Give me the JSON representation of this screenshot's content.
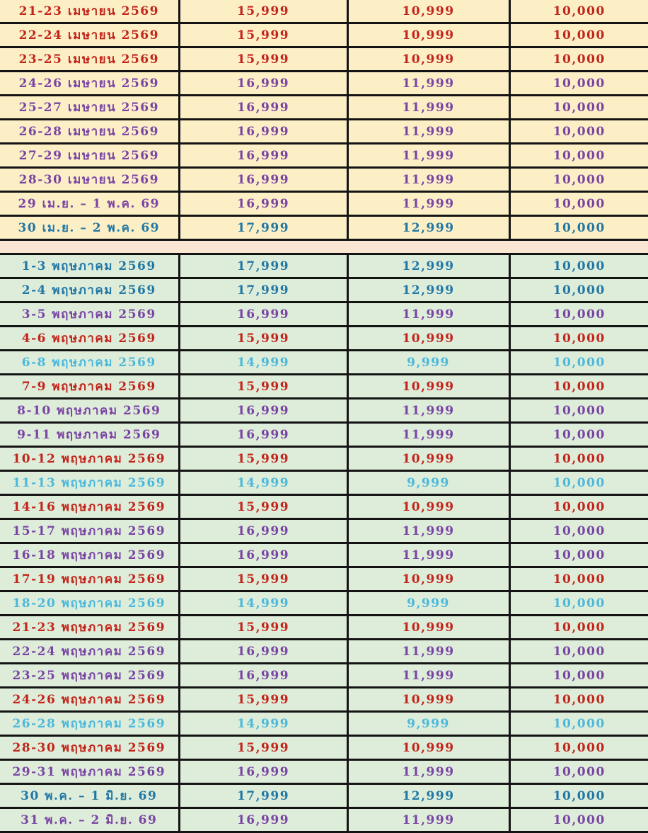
{
  "colors": {
    "red": "#C3241B",
    "purple": "#7A44A4",
    "teal": "#2177A5",
    "cyan": "#4BB8DC",
    "april_bg": "#FCEFC6",
    "may_bg": "#DEEDDA",
    "gap_bg": "#FAE7D3",
    "border": "#141414"
  },
  "chart_data": {
    "type": "table",
    "columns": [
      "date_range",
      "price_1",
      "price_2",
      "price_3"
    ],
    "note_visible_text_only": "no header row visible in crop"
  },
  "sections": [
    {
      "id": "april-2569",
      "bg": "april_bg",
      "rows": [
        {
          "date": "21-23 เมษายน 2569",
          "price1": "15,999",
          "price2": "10,999",
          "price3": "10,000",
          "color": "red"
        },
        {
          "date": "22-24 เมษายน 2569",
          "price1": "15,999",
          "price2": "10,999",
          "price3": "10,000",
          "color": "red"
        },
        {
          "date": "23-25 เมษายน 2569",
          "price1": "15,999",
          "price2": "10,999",
          "price3": "10,000",
          "color": "red"
        },
        {
          "date": "24-26 เมษายน 2569",
          "price1": "16,999",
          "price2": "11,999",
          "price3": "10,000",
          "color": "purple"
        },
        {
          "date": "25-27 เมษายน 2569",
          "price1": "16,999",
          "price2": "11,999",
          "price3": "10,000",
          "color": "purple"
        },
        {
          "date": "26-28 เมษายน 2569",
          "price1": "16,999",
          "price2": "11,999",
          "price3": "10,000",
          "color": "purple"
        },
        {
          "date": "27-29 เมษายน 2569",
          "price1": "16,999",
          "price2": "11,999",
          "price3": "10,000",
          "color": "purple"
        },
        {
          "date": "28-30 เมษายน 2569",
          "price1": "16,999",
          "price2": "11,999",
          "price3": "10,000",
          "color": "purple"
        },
        {
          "date": "29 เม.ย. – 1 พ.ค. 69",
          "price1": "16,999",
          "price2": "11,999",
          "price3": "10,000",
          "color": "purple"
        },
        {
          "date": "30 เม.ย. – 2 พ.ค. 69",
          "price1": "17,999",
          "price2": "12,999",
          "price3": "10,000",
          "color": "teal"
        }
      ]
    },
    {
      "id": "may-2569",
      "bg": "may_bg",
      "rows": [
        {
          "date": "1-3 พฤษภาคม 2569",
          "price1": "17,999",
          "price2": "12,999",
          "price3": "10,000",
          "color": "teal"
        },
        {
          "date": "2-4 พฤษภาคม 2569",
          "price1": "17,999",
          "price2": "12,999",
          "price3": "10,000",
          "color": "teal"
        },
        {
          "date": "3-5 พฤษภาคม 2569",
          "price1": "16,999",
          "price2": "11,999",
          "price3": "10,000",
          "color": "purple"
        },
        {
          "date": "4-6 พฤษภาคม 2569",
          "price1": "15,999",
          "price2": "10,999",
          "price3": "10,000",
          "color": "red"
        },
        {
          "date": "6-8 พฤษภาคม 2569",
          "price1": "14,999",
          "price2": "9,999",
          "price3": "10,000",
          "color": "cyan"
        },
        {
          "date": "7-9 พฤษภาคม 2569",
          "price1": "15,999",
          "price2": "10,999",
          "price3": "10,000",
          "color": "red"
        },
        {
          "date": "8-10 พฤษภาคม 2569",
          "price1": "16,999",
          "price2": "11,999",
          "price3": "10,000",
          "color": "purple"
        },
        {
          "date": "9-11 พฤษภาคม 2569",
          "price1": "16,999",
          "price2": "11,999",
          "price3": "10,000",
          "color": "purple"
        },
        {
          "date": "10-12 พฤษภาคม 2569",
          "price1": "15,999",
          "price2": "10,999",
          "price3": "10,000",
          "color": "red"
        },
        {
          "date": "11-13 พฤษภาคม 2569",
          "price1": "14,999",
          "price2": "9,999",
          "price3": "10,000",
          "color": "cyan"
        },
        {
          "date": "14-16 พฤษภาคม 2569",
          "price1": "15,999",
          "price2": "10,999",
          "price3": "10,000",
          "color": "red"
        },
        {
          "date": "15-17 พฤษภาคม 2569",
          "price1": "16,999",
          "price2": "11,999",
          "price3": "10,000",
          "color": "purple"
        },
        {
          "date": "16-18 พฤษภาคม 2569",
          "price1": "16,999",
          "price2": "11,999",
          "price3": "10,000",
          "color": "purple"
        },
        {
          "date": "17-19 พฤษภาคม 2569",
          "price1": "15,999",
          "price2": "10,999",
          "price3": "10,000",
          "color": "red"
        },
        {
          "date": "18-20 พฤษภาคม 2569",
          "price1": "14,999",
          "price2": "9,999",
          "price3": "10,000",
          "color": "cyan"
        },
        {
          "date": "21-23 พฤษภาคม 2569",
          "price1": "15,999",
          "price2": "10,999",
          "price3": "10,000",
          "color": "red"
        },
        {
          "date": "22-24 พฤษภาคม 2569",
          "price1": "16,999",
          "price2": "11,999",
          "price3": "10,000",
          "color": "purple"
        },
        {
          "date": "23-25 พฤษภาคม 2569",
          "price1": "16,999",
          "price2": "11,999",
          "price3": "10,000",
          "color": "purple"
        },
        {
          "date": "24-26 พฤษภาคม 2569",
          "price1": "15,999",
          "price2": "10,999",
          "price3": "10,000",
          "color": "red"
        },
        {
          "date": "26-28 พฤษภาคม 2569",
          "price1": "14,999",
          "price2": "9,999",
          "price3": "10,000",
          "color": "cyan"
        },
        {
          "date": "28-30 พฤษภาคม 2569",
          "price1": "15,999",
          "price2": "10,999",
          "price3": "10,000",
          "color": "red"
        },
        {
          "date": "29-31 พฤษภาคม 2569",
          "price1": "16,999",
          "price2": "11,999",
          "price3": "10,000",
          "color": "purple"
        },
        {
          "date": "30 พ.ค. – 1 มิ.ย. 69",
          "price1": "17,999",
          "price2": "12,999",
          "price3": "10,000",
          "color": "teal"
        },
        {
          "date": "31 พ.ค. – 2 มิ.ย. 69",
          "price1": "16,999",
          "price2": "11,999",
          "price3": "10,000",
          "color": "purple"
        }
      ]
    }
  ]
}
